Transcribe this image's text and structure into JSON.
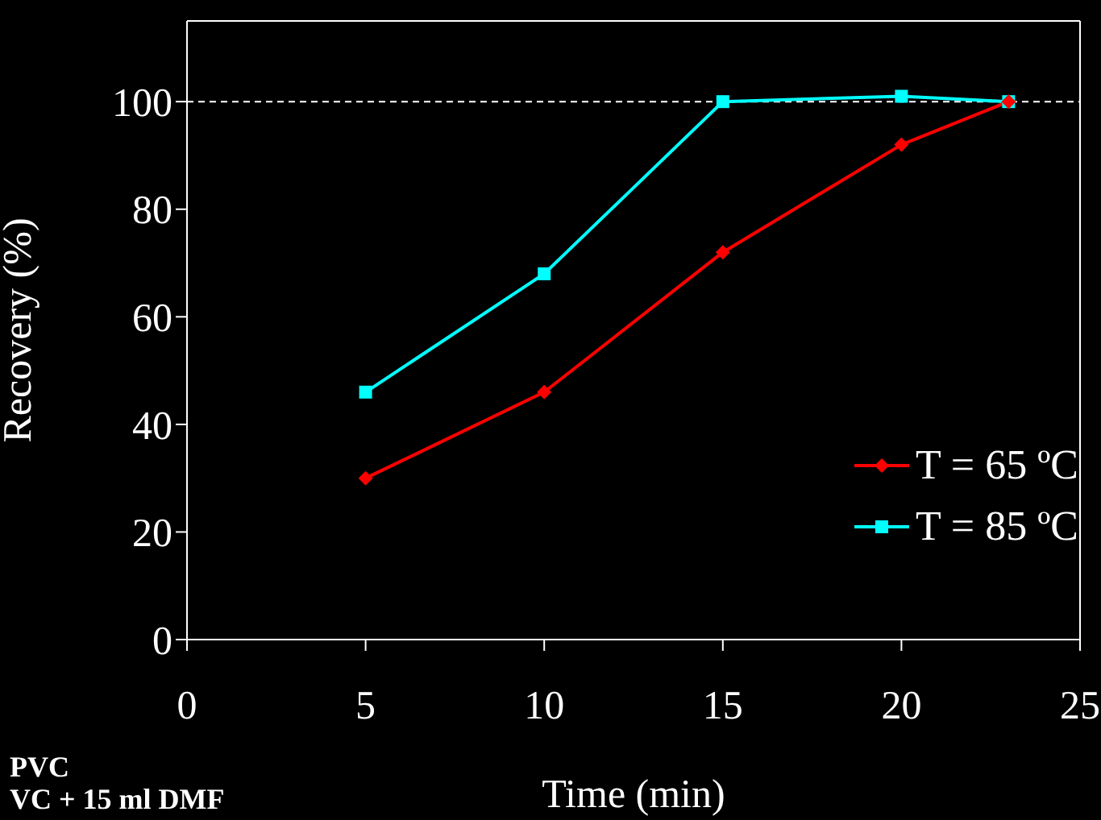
{
  "chart_data": {
    "type": "line",
    "xlabel": "Time (min)",
    "ylabel": "Recovery (%)",
    "x": [
      5,
      10,
      15,
      20,
      23
    ],
    "series": [
      {
        "name": "T = 65 ºC",
        "color": "#ff0000",
        "marker": "diamond",
        "values": [
          30,
          46,
          72,
          92,
          100
        ]
      },
      {
        "name": "T =  85 ºC",
        "color": "#00ffff",
        "marker": "square",
        "values": [
          46,
          68,
          100,
          101,
          100
        ]
      }
    ],
    "xlim": [
      0,
      25
    ],
    "xticks": [
      0,
      5,
      10,
      15,
      20,
      25
    ],
    "ylim": [
      0,
      115
    ],
    "yticks": [
      0,
      20,
      40,
      60,
      80,
      100
    ],
    "ref_lines": [
      {
        "axis": "y",
        "value": 100,
        "color": "#ffffff",
        "line_style": "dashed"
      }
    ],
    "legend": "bottom right",
    "grid": false,
    "line_style": "solid",
    "annotations": [
      "PVC",
      "VC + 15 ml DMF"
    ]
  }
}
